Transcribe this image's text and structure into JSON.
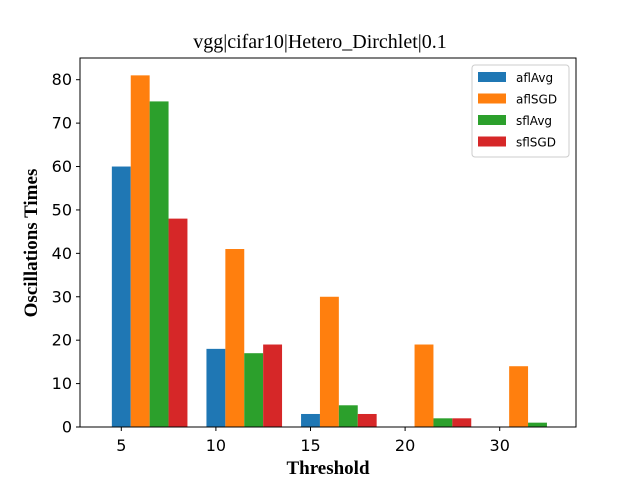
{
  "chart_data": {
    "type": "bar",
    "title": "vgg|cifar10|Hetero_Dirchlet|0.1",
    "xlabel": "Threshold",
    "ylabel": "Oscillations Times",
    "categories": [
      "5",
      "10",
      "15",
      "20",
      "30"
    ],
    "ylim": [
      0,
      85
    ],
    "yticks": [
      0,
      10,
      20,
      30,
      40,
      50,
      60,
      70,
      80
    ],
    "grid": false,
    "legend_position": "top-right",
    "series": [
      {
        "name": "aflAvg",
        "color": "#1f77b4",
        "values": [
          60,
          18,
          3,
          0,
          0
        ]
      },
      {
        "name": "aflSGD",
        "color": "#ff7f0e",
        "values": [
          81,
          41,
          30,
          19,
          14
        ]
      },
      {
        "name": "sflAvg",
        "color": "#2ca02c",
        "values": [
          75,
          17,
          5,
          2,
          1
        ]
      },
      {
        "name": "sflSGD",
        "color": "#d62728",
        "values": [
          48,
          19,
          3,
          2,
          0
        ]
      }
    ]
  }
}
